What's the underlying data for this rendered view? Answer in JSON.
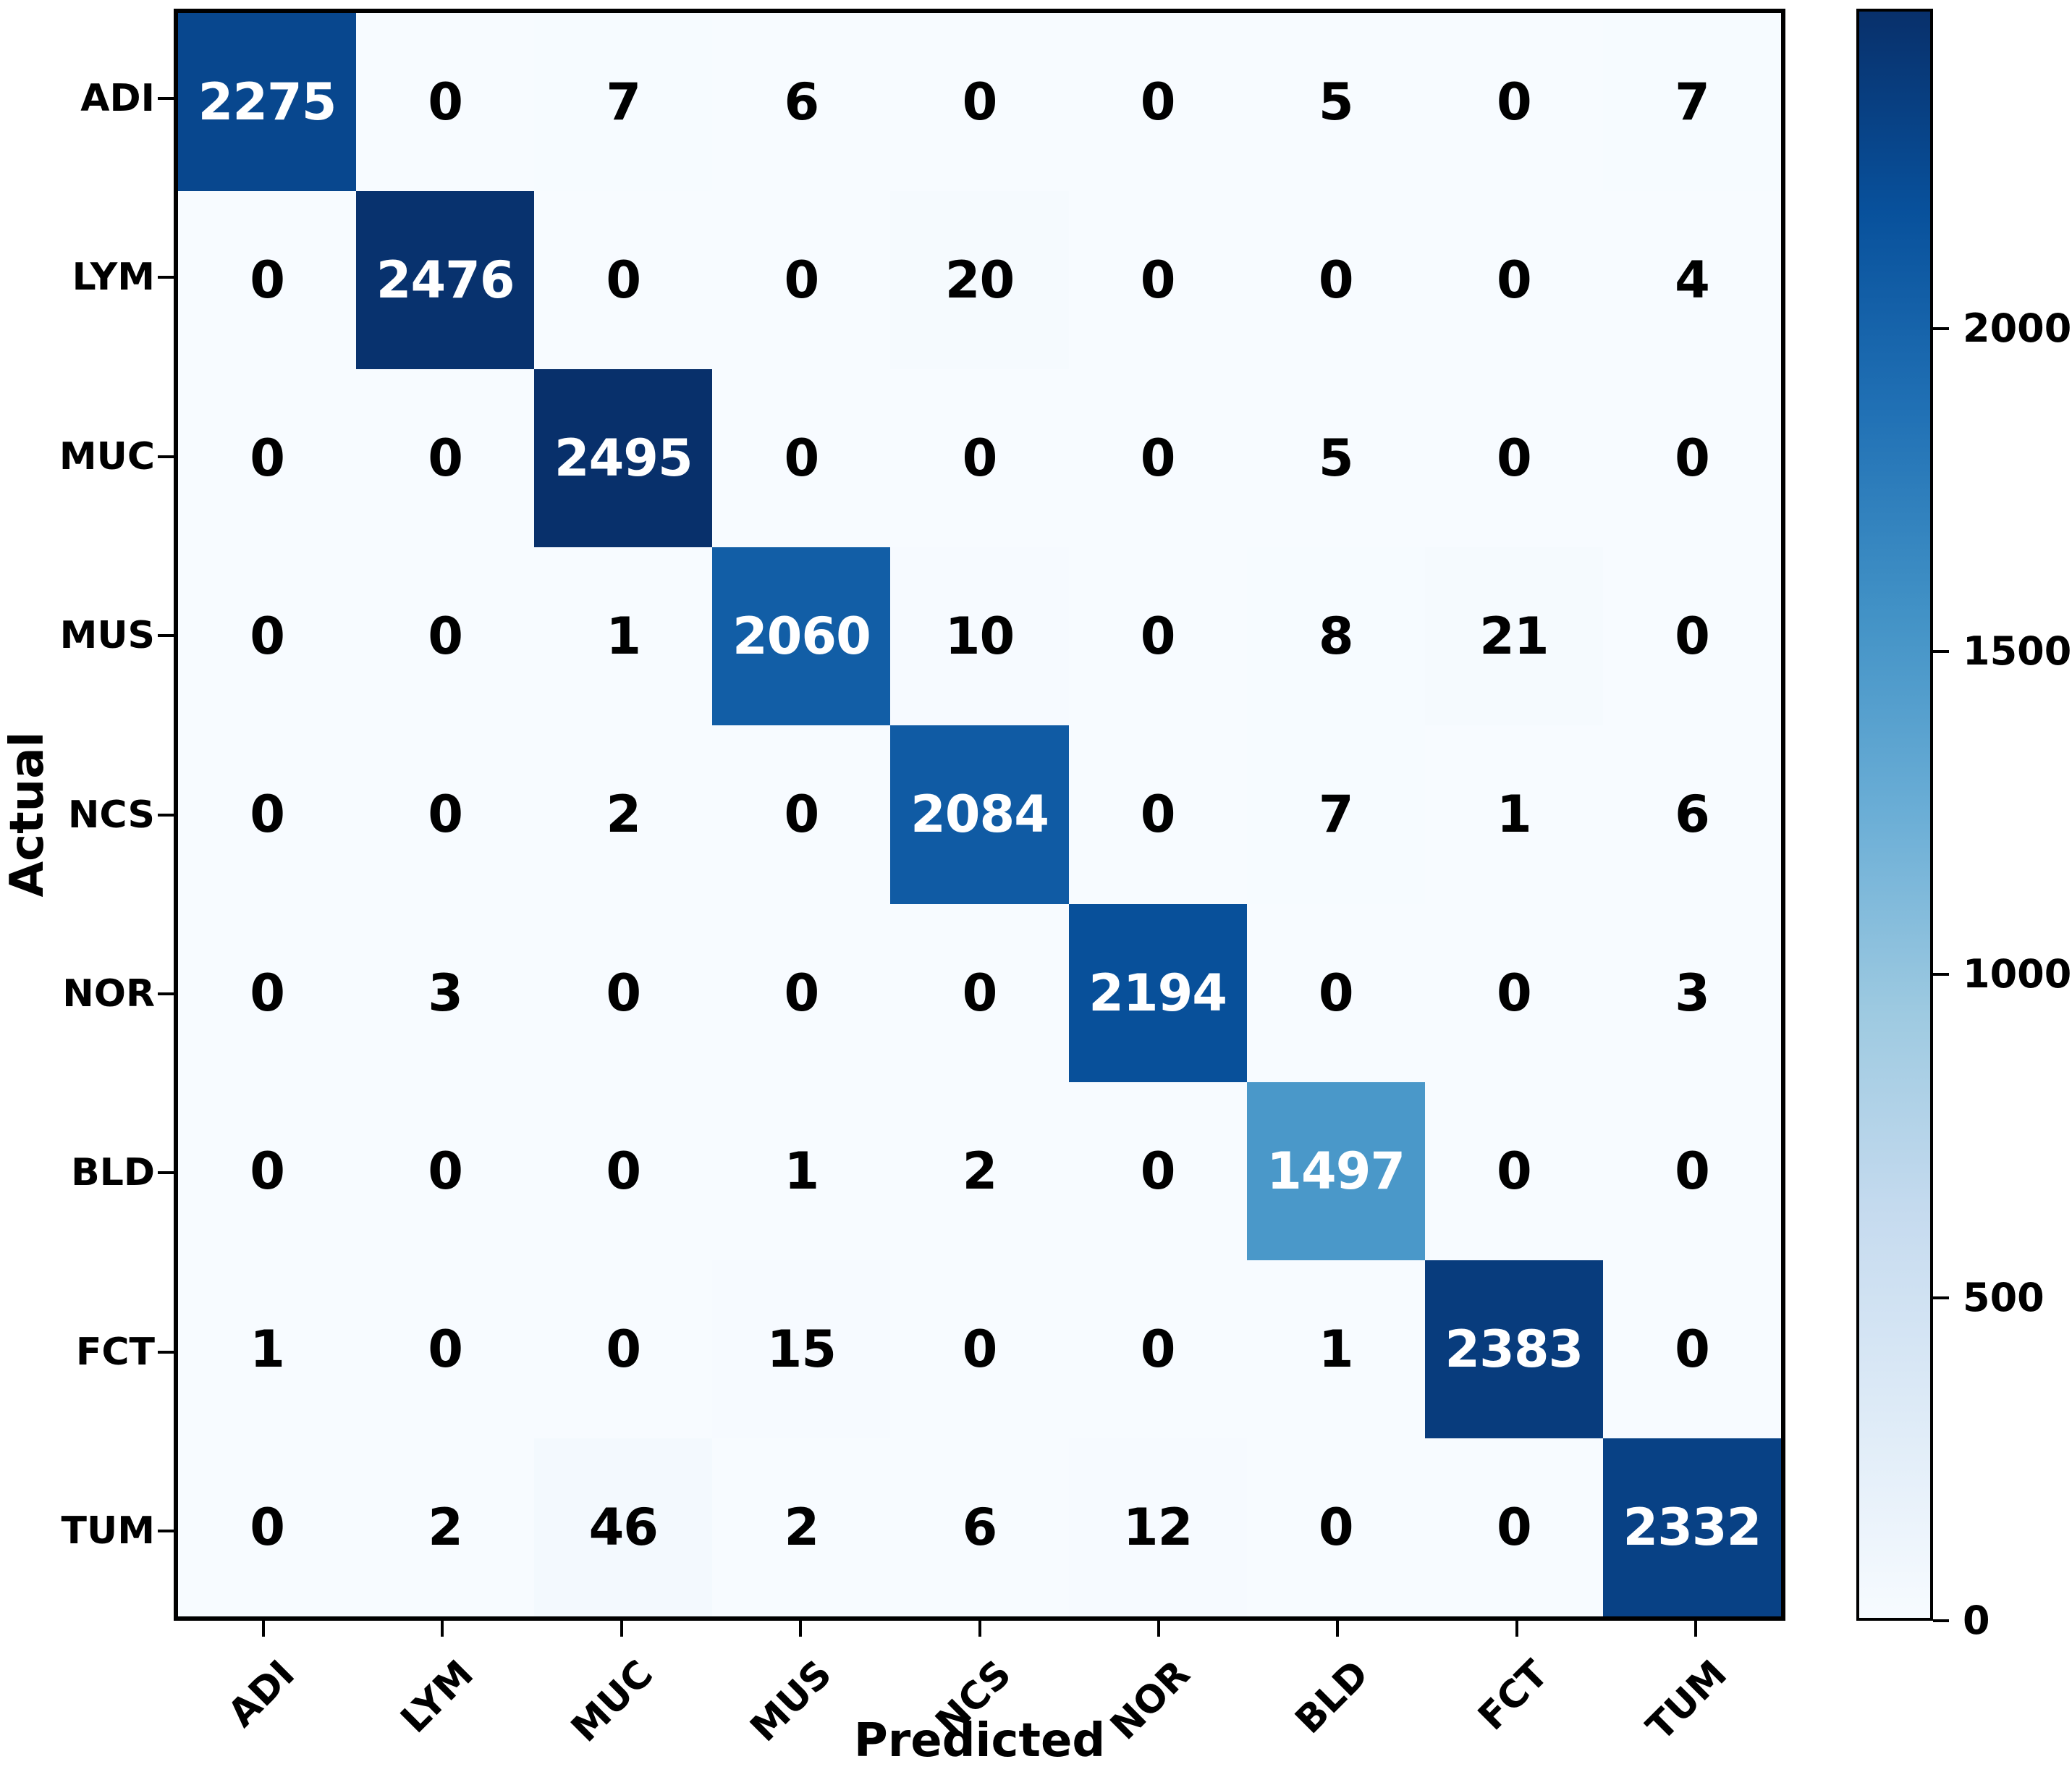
{
  "chart_data": {
    "type": "heatmap",
    "title": "",
    "xlabel": "Predicted",
    "ylabel": "Actual",
    "categories": [
      "ADI",
      "LYM",
      "MUC",
      "MUS",
      "NCS",
      "NOR",
      "BLD",
      "FCT",
      "TUM"
    ],
    "matrix": [
      [
        2275,
        0,
        7,
        6,
        0,
        0,
        5,
        0,
        7
      ],
      [
        0,
        2476,
        0,
        0,
        20,
        0,
        0,
        0,
        4
      ],
      [
        0,
        0,
        2495,
        0,
        0,
        0,
        5,
        0,
        0
      ],
      [
        0,
        0,
        1,
        2060,
        10,
        0,
        8,
        21,
        0
      ],
      [
        0,
        0,
        2,
        0,
        2084,
        0,
        7,
        1,
        6
      ],
      [
        0,
        3,
        0,
        0,
        0,
        2194,
        0,
        0,
        3
      ],
      [
        0,
        0,
        0,
        1,
        2,
        0,
        1497,
        0,
        0
      ],
      [
        1,
        0,
        0,
        15,
        0,
        0,
        1,
        2383,
        0
      ],
      [
        0,
        2,
        46,
        2,
        6,
        12,
        0,
        0,
        2332
      ]
    ],
    "vmin": 0,
    "vmax": 2495,
    "colormap": {
      "name": "Blues",
      "anchors": [
        "#f7fbff",
        "#deebf7",
        "#c6dbef",
        "#9ecae1",
        "#6baed6",
        "#4292c6",
        "#2171b5",
        "#08519c",
        "#08306b"
      ]
    },
    "colorbar_ticks": [
      0,
      500,
      1000,
      1500,
      2000
    ],
    "cell_text_colors": {
      "light_bg": "#000000",
      "dark_bg": "#ffffff"
    },
    "grid": false,
    "legend_position": "right-colorbar",
    "frame_color": "#000000",
    "background": "#ffffff"
  }
}
